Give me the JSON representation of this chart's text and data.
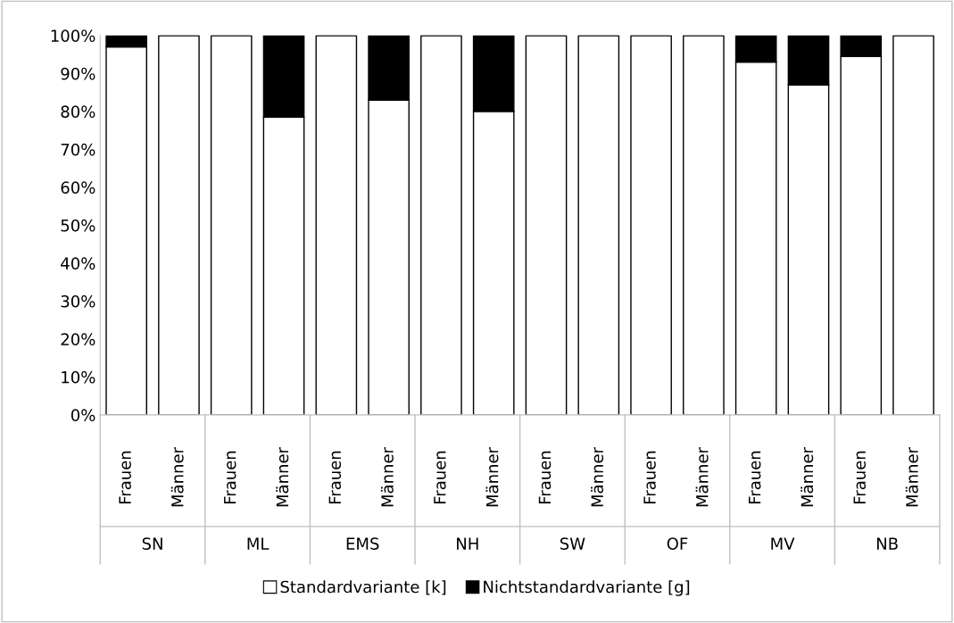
{
  "chart_data": {
    "type": "bar",
    "stacked": true,
    "categories": [
      "Frauen",
      "Männer",
      "Frauen",
      "Männer",
      "Frauen",
      "Männer",
      "Frauen",
      "Männer",
      "Frauen",
      "Männer",
      "Frauen",
      "Männer",
      "Frauen",
      "Männer",
      "Frauen",
      "Männer"
    ],
    "series": [
      {
        "name": "Standardvariante [k]",
        "color": "#ffffff",
        "values": [
          97,
          100,
          100,
          78.5,
          100,
          83,
          100,
          80,
          100,
          100,
          100,
          100,
          93,
          87,
          94.5,
          100
        ]
      },
      {
        "name": "Nichtstandardvariante [g]",
        "color": "#000000",
        "values": [
          3,
          0,
          0,
          21.5,
          0,
          17,
          0,
          20,
          0,
          0,
          0,
          0,
          7,
          13,
          5.5,
          0
        ]
      }
    ],
    "annotations": [
      "SN",
      "ML",
      "EMS",
      "NH",
      "SW",
      "OF",
      "MV",
      "NB"
    ],
    "ylim": [
      0,
      100
    ],
    "yticks": [
      {
        "value": 0,
        "label": "0%"
      },
      {
        "value": 10,
        "label": "10%"
      },
      {
        "value": 20,
        "label": "20%"
      },
      {
        "value": 30,
        "label": "30%"
      },
      {
        "value": 40,
        "label": "40%"
      },
      {
        "value": 50,
        "label": "50%"
      },
      {
        "value": 60,
        "label": "60%"
      },
      {
        "value": 70,
        "label": "70%"
      },
      {
        "value": 80,
        "label": "80%"
      },
      {
        "value": 90,
        "label": "90%"
      },
      {
        "value": 100,
        "label": "100%"
      }
    ],
    "grid": false,
    "legend": "bottom"
  }
}
